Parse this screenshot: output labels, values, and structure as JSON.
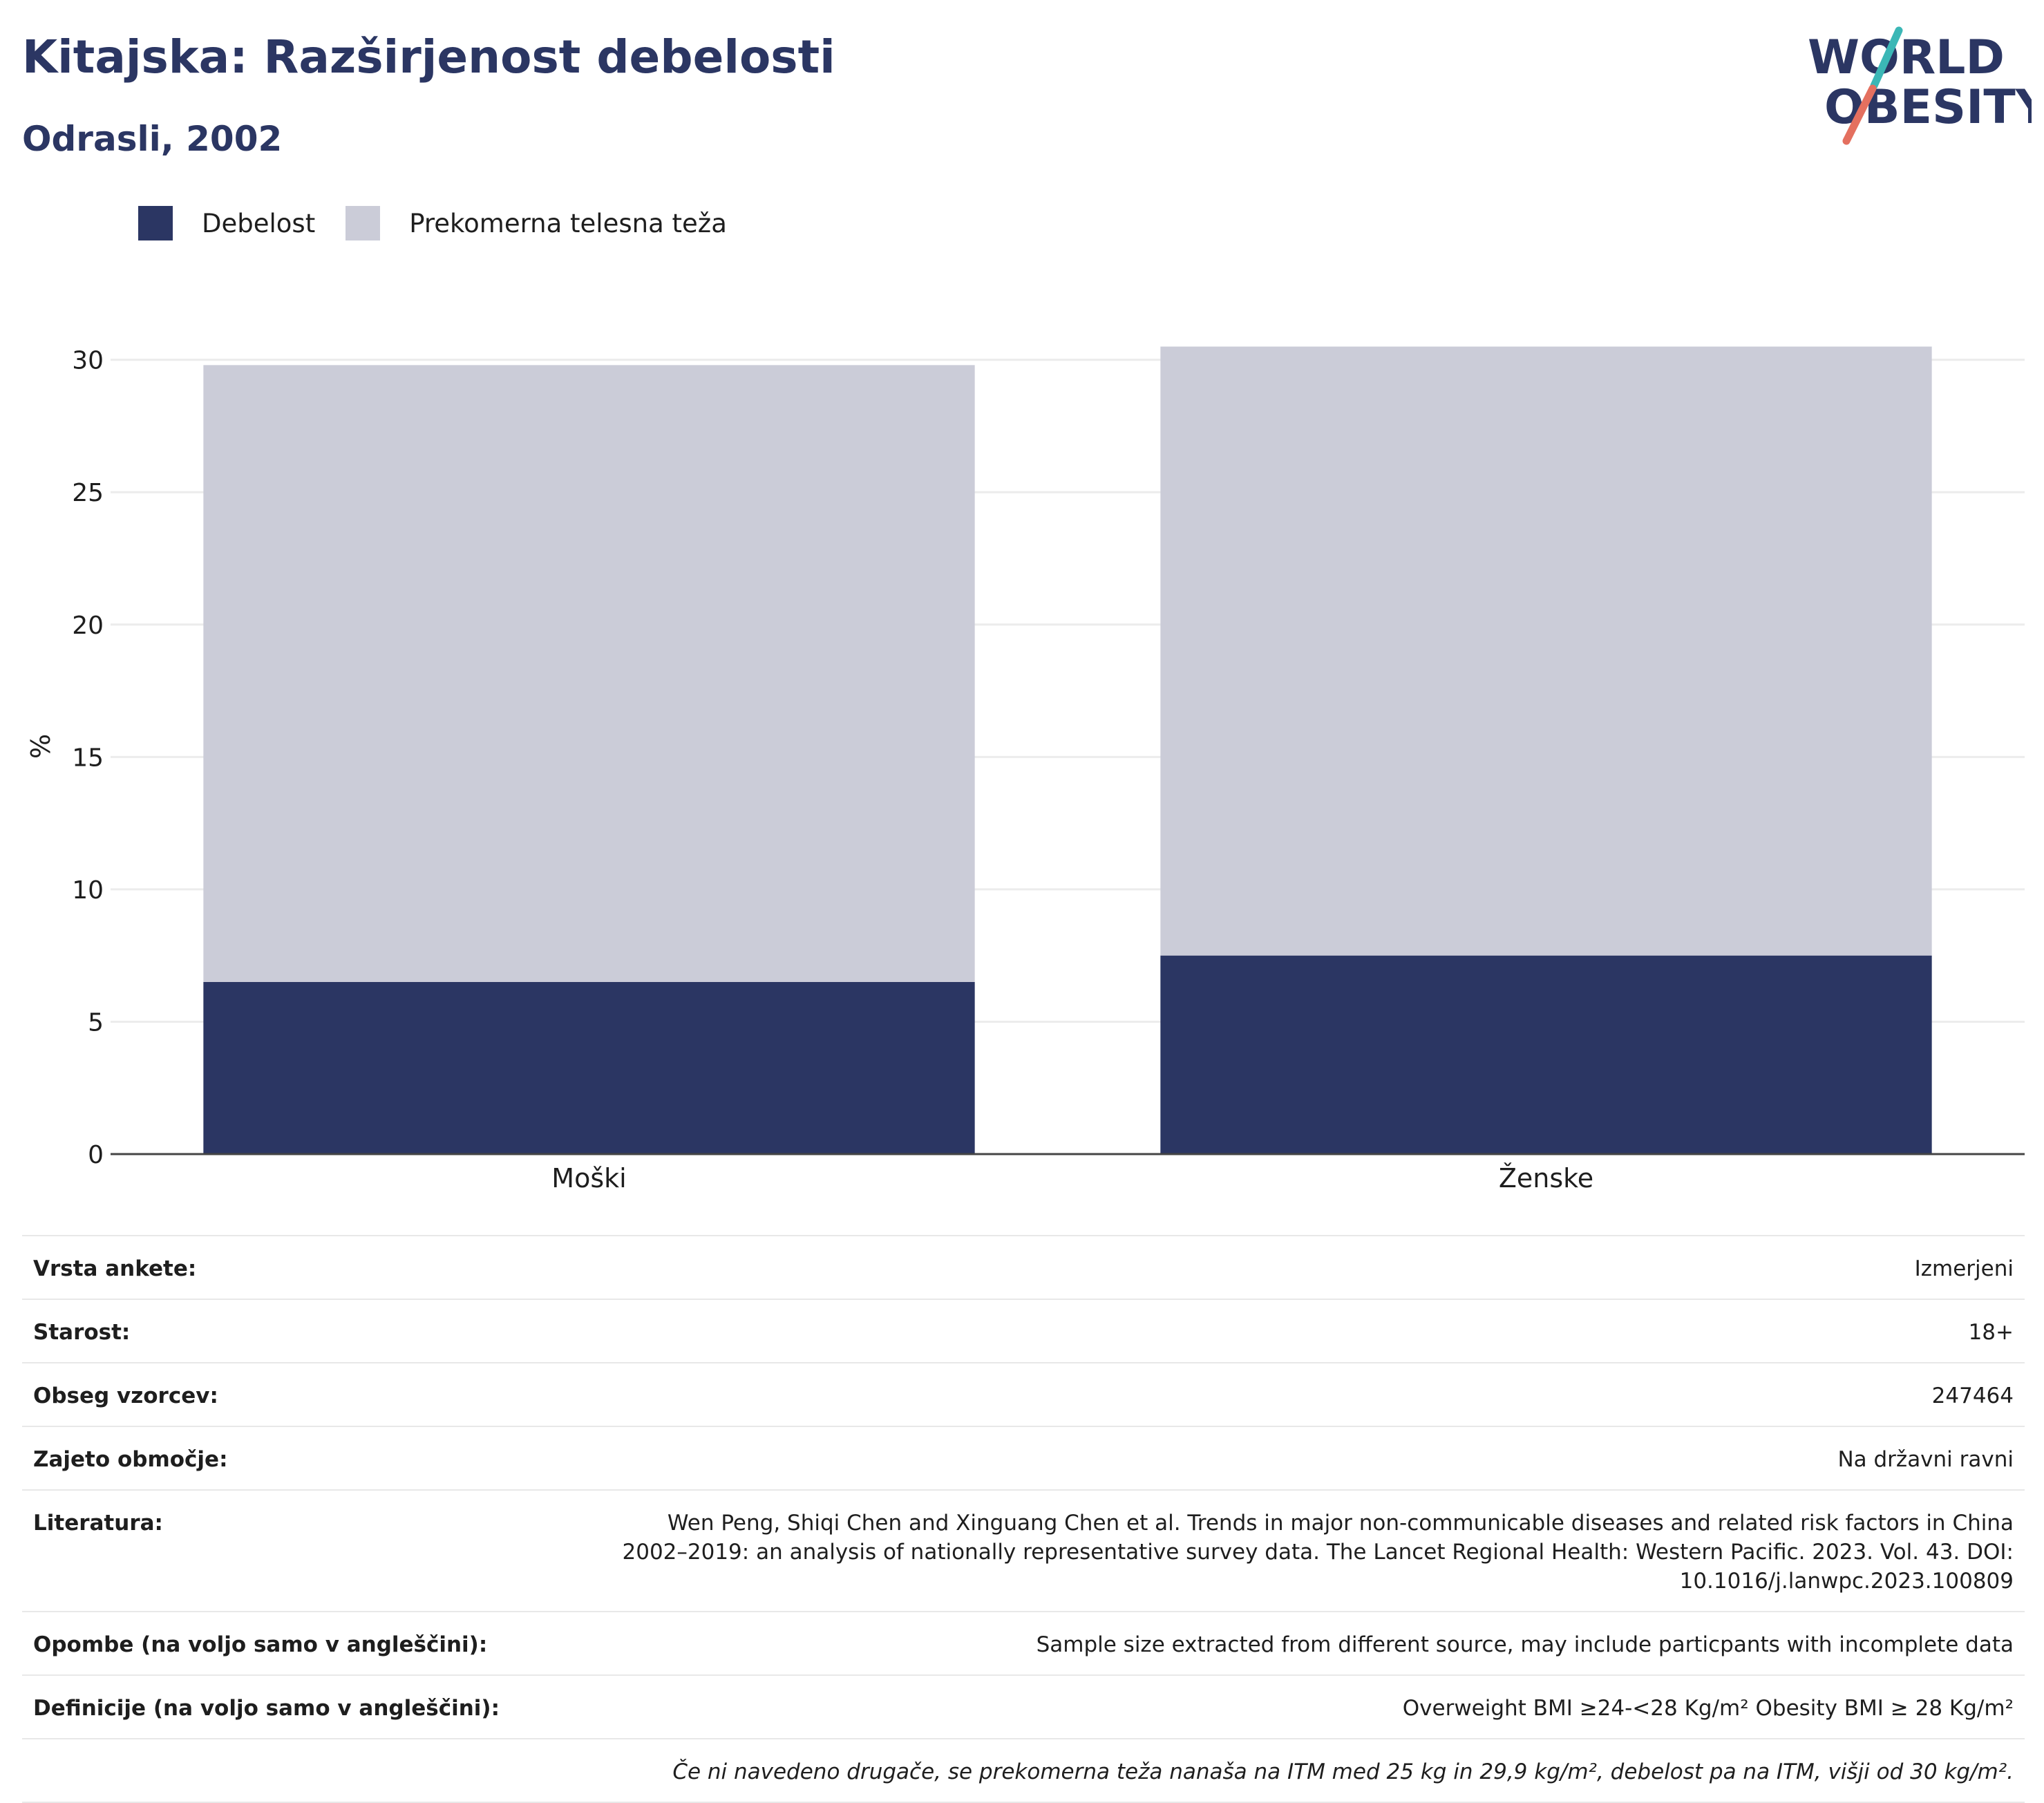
{
  "header": {
    "title": "Kitajska: Razširjenost debelosti",
    "subtitle": "Odrasli, 2002",
    "logo_line1": "WORLD",
    "logo_line2": "OBESITY"
  },
  "colors": {
    "obesity": "#2b3663",
    "overweight": "#cbccd8",
    "brand_teal": "#3bb7b6",
    "brand_coral": "#e4705f"
  },
  "legend": {
    "items": [
      {
        "label": "Debelost",
        "color": "#2b3663"
      },
      {
        "label": "Prekomerna telesna teža",
        "color": "#cbccd8"
      }
    ]
  },
  "chart_data": {
    "type": "bar",
    "stacked": true,
    "categories": [
      "Moški",
      "Ženske"
    ],
    "series": [
      {
        "name": "Debelost",
        "values": [
          6.5,
          7.5
        ]
      },
      {
        "name": "Prekomerna telesna teža",
        "values": [
          23.3,
          23.0
        ]
      }
    ],
    "ylabel": "%",
    "ylim": [
      0,
      30.8
    ],
    "yticks": [
      0,
      5,
      10,
      15,
      20,
      25,
      30
    ],
    "grid": true,
    "legend_position": "top-left"
  },
  "info": {
    "rows": [
      {
        "label": "Vrsta ankete:",
        "value": "Izmerjeni"
      },
      {
        "label": "Starost:",
        "value": "18+"
      },
      {
        "label": "Obseg vzorcev:",
        "value": "247464"
      },
      {
        "label": "Zajeto območje:",
        "value": "Na državni ravni"
      },
      {
        "label": "Literatura:",
        "value": "Wen Peng, Shiqi Chen and Xinguang Chen et al. Trends in major non-communicable diseases and related risk factors in China 2002–2019: an analysis of nationally representative survey data. The Lancet Regional Health: Western Pacific. 2023. Vol. 43. DOI: 10.1016/j.lanwpc.2023.100809"
      },
      {
        "label": "Opombe (na voljo samo v angleščini):",
        "value": "Sample size extracted from different source, may include particpants with incomplete data"
      },
      {
        "label": "Definicije (na voljo samo v angleščini):",
        "value": "Overweight BMI ≥24-<28 Kg/m² Obesity BMI ≥ 28 Kg/m²"
      }
    ],
    "note": "Če ni navedeno drugače, se prekomerna teža nanaša na ITM med 25 kg in 29,9 kg/m², debelost pa na ITM, višji od 30 kg/m²."
  }
}
